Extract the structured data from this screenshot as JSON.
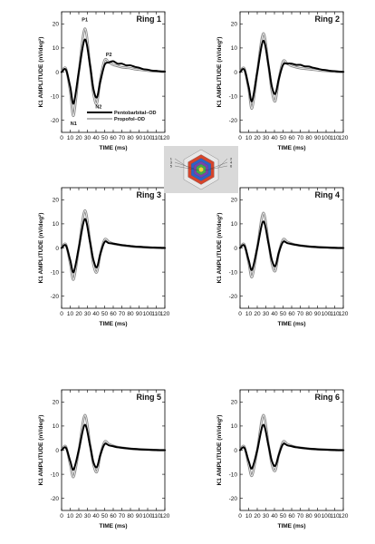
{
  "chart_data": [
    {
      "type": "line",
      "title": "Ring 1",
      "xlabel": "TIME (ms)",
      "ylabel": "K1 AMPLITUDE (nV/deg²)",
      "xlim": [
        0,
        120
      ],
      "ylim": [
        -25,
        25
      ],
      "xticks": [
        "0",
        "10",
        "20",
        "30",
        "40",
        "50",
        "60",
        "70",
        "80",
        "90",
        "100",
        "110",
        "120"
      ],
      "yticks": [
        "-20",
        "-10",
        "0",
        "10",
        "20"
      ],
      "series": [
        {
          "name": "Pentobarbital–OD",
          "color": "#000000",
          "x": [
            0,
            5,
            10,
            14,
            20,
            27,
            33,
            37,
            41,
            45,
            50,
            55,
            60,
            65,
            70,
            75,
            80,
            85,
            90,
            95,
            100,
            105,
            110,
            115,
            120
          ],
          "y": [
            0,
            1,
            -6,
            -13,
            0,
            13.5,
            3,
            -7,
            -10.5,
            -4,
            3,
            4,
            4.5,
            3.5,
            3.5,
            2.8,
            2.8,
            2.2,
            1.8,
            1.2,
            1,
            0.6,
            0.5,
            0.3,
            0.2
          ]
        },
        {
          "name": "Propofol–OD",
          "color": "#8c8c8c",
          "x": [
            0,
            5,
            10,
            14,
            20,
            27,
            33,
            37,
            41,
            45,
            50,
            55,
            60,
            65,
            70,
            75,
            80,
            85,
            90,
            95,
            100,
            105,
            110,
            115,
            120
          ],
          "y": [
            0,
            1.5,
            -8,
            -18,
            0,
            18,
            3,
            -9,
            -13,
            -3,
            5,
            4,
            3,
            2.5,
            2,
            1.8,
            1.6,
            1.2,
            1,
            0.8,
            0.6,
            0.4,
            0.3,
            0.2,
            0.1
          ]
        }
      ],
      "annotations": [
        {
          "text": "P1",
          "x": 27,
          "y": 21
        },
        {
          "text": "P2",
          "x": 55,
          "y": 6.5
        },
        {
          "text": "N1",
          "x": 14,
          "y": -22
        },
        {
          "text": "N2",
          "x": 43,
          "y": -15
        }
      ],
      "legend": [
        "Pentobarbital–OD",
        "Propofol–OD"
      ]
    },
    {
      "type": "line",
      "title": "Ring 2",
      "xlabel": "TIME (ms)",
      "ylabel": "K1 AMPLITUDE (nV/deg²)",
      "xlim": [
        0,
        120
      ],
      "ylim": [
        -25,
        25
      ],
      "xticks": [
        "0",
        "10",
        "20",
        "30",
        "40",
        "50",
        "60",
        "70",
        "80",
        "90",
        "100",
        "110",
        "120"
      ],
      "yticks": [
        "-20",
        "-10",
        "0",
        "10",
        "20"
      ],
      "series": [
        {
          "name": "Pentobarbital–OD",
          "color": "#000000",
          "x": [
            0,
            5,
            10,
            14,
            20,
            27,
            33,
            37,
            41,
            45,
            50,
            55,
            60,
            65,
            70,
            75,
            80,
            85,
            90,
            95,
            100,
            105,
            110,
            115,
            120
          ],
          "y": [
            0,
            1,
            -6,
            -12,
            0,
            13,
            3,
            -6,
            -9,
            -3,
            3,
            3.5,
            3.5,
            3,
            3,
            2.4,
            2.3,
            1.8,
            1.4,
            1,
            0.8,
            0.5,
            0.4,
            0.2,
            0.1
          ]
        },
        {
          "name": "Propofol–OD",
          "color": "#8c8c8c",
          "x": [
            0,
            5,
            10,
            14,
            20,
            27,
            33,
            37,
            41,
            45,
            50,
            55,
            60,
            65,
            70,
            75,
            80,
            85,
            90,
            95,
            100,
            105,
            110,
            115,
            120
          ],
          "y": [
            0,
            1.5,
            -7,
            -15,
            0,
            16,
            3,
            -8,
            -12,
            -3,
            4.5,
            3.5,
            2.5,
            2,
            1.6,
            1.4,
            1.2,
            1,
            0.8,
            0.6,
            0.5,
            0.3,
            0.2,
            0.1,
            0.1
          ]
        }
      ]
    },
    {
      "type": "line",
      "title": "Ring 3",
      "xlabel": "TIME (ms)",
      "ylabel": "K1 AMPLITUDE (nV/deg²)",
      "xlim": [
        0,
        120
      ],
      "ylim": [
        -25,
        25
      ],
      "xticks": [
        "0",
        "10",
        "20",
        "30",
        "40",
        "50",
        "60",
        "70",
        "80",
        "90",
        "100",
        "110",
        "120"
      ],
      "yticks": [
        "-20",
        "-10",
        "0",
        "10",
        "20"
      ],
      "series": [
        {
          "name": "Pentobarbital–OD",
          "color": "#000000",
          "x": [
            0,
            5,
            10,
            14,
            20,
            27,
            33,
            37,
            41,
            45,
            50,
            55,
            60,
            65,
            70,
            75,
            80,
            85,
            90,
            95,
            100,
            105,
            110,
            115,
            120
          ],
          "y": [
            0,
            1,
            -5,
            -10,
            0,
            12,
            2.5,
            -5,
            -8,
            -2.5,
            2.5,
            2,
            1.8,
            1.5,
            1.2,
            1,
            0.8,
            0.6,
            0.5,
            0.4,
            0.3,
            0.2,
            0.1,
            0.1,
            0
          ]
        },
        {
          "name": "Propofol–OD",
          "color": "#8c8c8c",
          "x": [
            0,
            5,
            10,
            14,
            20,
            27,
            33,
            37,
            41,
            45,
            50,
            55,
            60,
            65,
            70,
            75,
            80,
            85,
            90,
            95,
            100,
            105,
            110,
            115,
            120
          ],
          "y": [
            0,
            1.5,
            -6.5,
            -13,
            0,
            15.5,
            3,
            -7,
            -10,
            -2.5,
            3.5,
            2.5,
            1.8,
            1.4,
            1.1,
            0.9,
            0.7,
            0.5,
            0.4,
            0.3,
            0.2,
            0.1,
            0.1,
            0,
            0
          ]
        }
      ]
    },
    {
      "type": "line",
      "title": "Ring 4",
      "xlabel": "TIME (ms)",
      "ylabel": "K1 AMPLITUDE (nV/deg²)",
      "xlim": [
        0,
        120
      ],
      "ylim": [
        -25,
        25
      ],
      "xticks": [
        "0",
        "10",
        "20",
        "30",
        "40",
        "50",
        "60",
        "70",
        "80",
        "90",
        "100",
        "110",
        "120"
      ],
      "yticks": [
        "-20",
        "-10",
        "0",
        "10",
        "20"
      ],
      "series": [
        {
          "name": "Pentobarbital–OD",
          "color": "#000000",
          "x": [
            0,
            5,
            10,
            14,
            20,
            27,
            33,
            37,
            41,
            45,
            50,
            55,
            60,
            65,
            70,
            75,
            80,
            85,
            90,
            95,
            100,
            105,
            110,
            115,
            120
          ],
          "y": [
            0,
            1,
            -5,
            -9,
            0,
            11,
            2,
            -5,
            -7.5,
            -2,
            2.5,
            2,
            1.6,
            1.3,
            1,
            0.8,
            0.6,
            0.5,
            0.4,
            0.3,
            0.2,
            0.1,
            0.1,
            0,
            0
          ]
        },
        {
          "name": "Propofol–OD",
          "color": "#8c8c8c",
          "x": [
            0,
            5,
            10,
            14,
            20,
            27,
            33,
            37,
            41,
            45,
            50,
            55,
            60,
            65,
            70,
            75,
            80,
            85,
            90,
            95,
            100,
            105,
            110,
            115,
            120
          ],
          "y": [
            0,
            1.5,
            -6,
            -12,
            0,
            14.5,
            2.5,
            -6.5,
            -9.5,
            -2,
            3.5,
            2.5,
            1.8,
            1.3,
            1,
            0.8,
            0.6,
            0.4,
            0.3,
            0.2,
            0.2,
            0.1,
            0,
            0,
            0
          ]
        }
      ]
    },
    {
      "type": "line",
      "title": "Ring 5",
      "xlabel": "TIME (ms)",
      "ylabel": "K1 AMPLITUDE (nV/deg²)",
      "xlim": [
        0,
        120
      ],
      "ylim": [
        -25,
        25
      ],
      "xticks": [
        "0",
        "10",
        "20",
        "30",
        "40",
        "50",
        "60",
        "70",
        "80",
        "90",
        "100",
        "110",
        "120"
      ],
      "yticks": [
        "-20",
        "-10",
        "0",
        "10",
        "20"
      ],
      "series": [
        {
          "name": "Pentobarbital–OD",
          "color": "#000000",
          "x": [
            0,
            5,
            10,
            14,
            20,
            27,
            33,
            37,
            41,
            45,
            50,
            55,
            60,
            65,
            70,
            75,
            80,
            85,
            90,
            95,
            100,
            105,
            110,
            115,
            120
          ],
          "y": [
            0,
            1,
            -4.5,
            -8,
            0,
            10.5,
            2,
            -5,
            -7,
            -2,
            2.5,
            2,
            1.6,
            1.2,
            1,
            0.8,
            0.6,
            0.5,
            0.4,
            0.3,
            0.2,
            0.1,
            0.1,
            0,
            0
          ]
        },
        {
          "name": "Propofol–OD",
          "color": "#8c8c8c",
          "x": [
            0,
            5,
            10,
            14,
            20,
            27,
            33,
            37,
            41,
            45,
            50,
            55,
            60,
            65,
            70,
            75,
            80,
            85,
            90,
            95,
            100,
            105,
            110,
            115,
            120
          ],
          "y": [
            0,
            1.5,
            -6,
            -11,
            0,
            14.5,
            2.5,
            -6,
            -9,
            -2,
            3.5,
            2.5,
            1.8,
            1.3,
            1,
            0.8,
            0.6,
            0.4,
            0.3,
            0.2,
            0.2,
            0.1,
            0,
            0,
            0
          ]
        }
      ]
    },
    {
      "type": "line",
      "title": "Ring 6",
      "xlabel": "TIME (ms)",
      "ylabel": "K1 AMPLITUDE (nV/deg²)",
      "xlim": [
        0,
        120
      ],
      "ylim": [
        -25,
        25
      ],
      "xticks": [
        "0",
        "10",
        "20",
        "30",
        "40",
        "50",
        "60",
        "70",
        "80",
        "90",
        "100",
        "110",
        "120"
      ],
      "yticks": [
        "-20",
        "-10",
        "0",
        "10",
        "20"
      ],
      "series": [
        {
          "name": "Pentobarbital–OD",
          "color": "#000000",
          "x": [
            0,
            5,
            10,
            14,
            20,
            27,
            33,
            37,
            41,
            45,
            50,
            55,
            60,
            65,
            70,
            75,
            80,
            85,
            90,
            95,
            100,
            105,
            110,
            115,
            120
          ],
          "y": [
            0,
            1,
            -4.5,
            -7.5,
            0,
            10.5,
            2,
            -4.5,
            -6.5,
            -2,
            2.5,
            2,
            1.6,
            1.2,
            1,
            0.8,
            0.6,
            0.5,
            0.4,
            0.3,
            0.2,
            0.1,
            0.1,
            0,
            0
          ]
        },
        {
          "name": "Propofol–OD",
          "color": "#8c8c8c",
          "x": [
            0,
            5,
            10,
            14,
            20,
            27,
            33,
            37,
            41,
            45,
            50,
            55,
            60,
            65,
            70,
            75,
            80,
            85,
            90,
            95,
            100,
            105,
            110,
            115,
            120
          ],
          "y": [
            0,
            1.5,
            -6,
            -10.5,
            0,
            14.5,
            2.5,
            -6,
            -8.5,
            -2,
            3.5,
            2.5,
            1.8,
            1.3,
            1,
            0.8,
            0.6,
            0.4,
            0.3,
            0.2,
            0.2,
            0.1,
            0,
            0,
            0
          ]
        }
      ]
    }
  ],
  "inset": {
    "labels_left": [
      "1",
      "3",
      "5"
    ],
    "labels_right": [
      "2",
      "4",
      "6"
    ],
    "ring_colors": [
      "#e8e8e8",
      "#d6452b",
      "#2a62c9",
      "#7a3fb0",
      "#3fae49",
      "#f2d23a"
    ],
    "background": "#d9d9d9"
  }
}
